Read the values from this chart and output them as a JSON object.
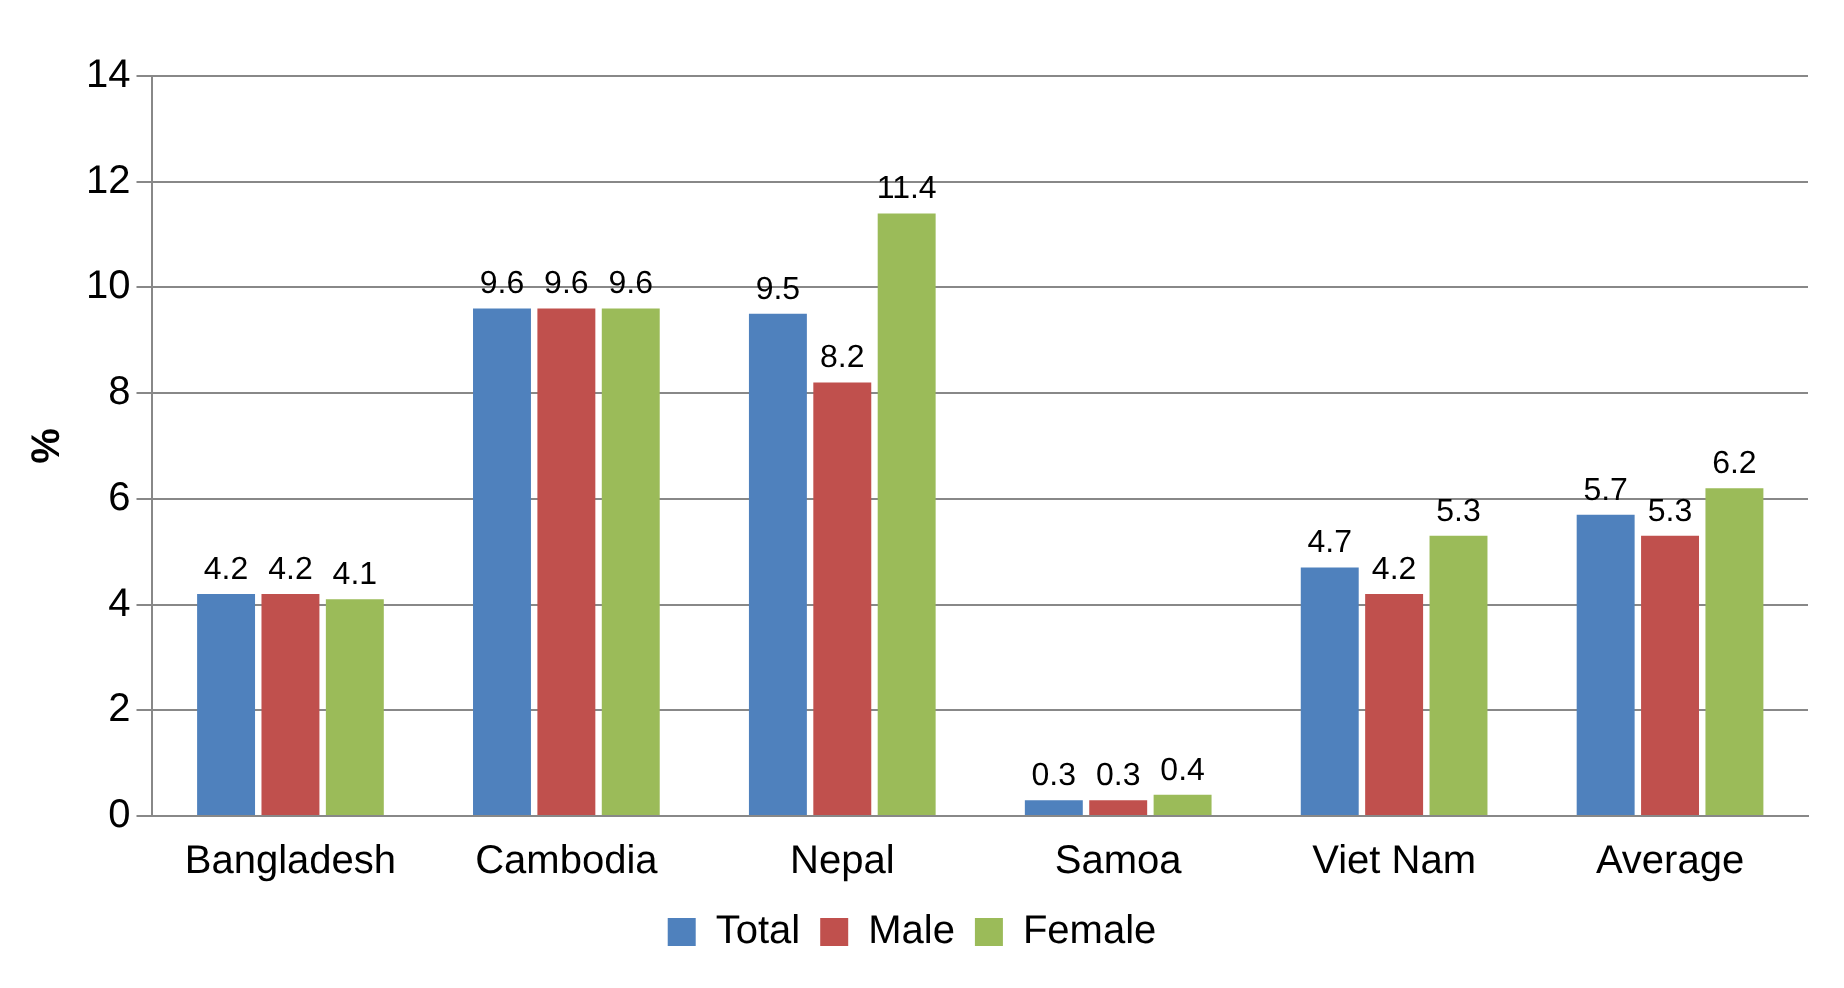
{
  "chart_data": {
    "type": "bar",
    "ylabel": "%",
    "categories": [
      "Bangladesh",
      "Cambodia",
      "Nepal",
      "Samoa",
      "Viet Nam",
      "Average"
    ],
    "series": [
      {
        "name": "Total",
        "color": "#4f81bd",
        "values": [
          4.2,
          9.6,
          9.5,
          0.3,
          4.7,
          5.7
        ]
      },
      {
        "name": "Male",
        "color": "#c0504d",
        "values": [
          4.2,
          9.6,
          8.2,
          0.3,
          4.2,
          5.3
        ]
      },
      {
        "name": "Female",
        "color": "#9bbb59",
        "values": [
          4.1,
          9.6,
          11.4,
          0.4,
          5.3,
          6.2
        ]
      }
    ],
    "ylim": [
      0,
      14
    ],
    "yticks": [
      0,
      2,
      4,
      6,
      8,
      10,
      12,
      14
    ],
    "grid": "y",
    "legend": "bottom",
    "data_labels": true
  }
}
